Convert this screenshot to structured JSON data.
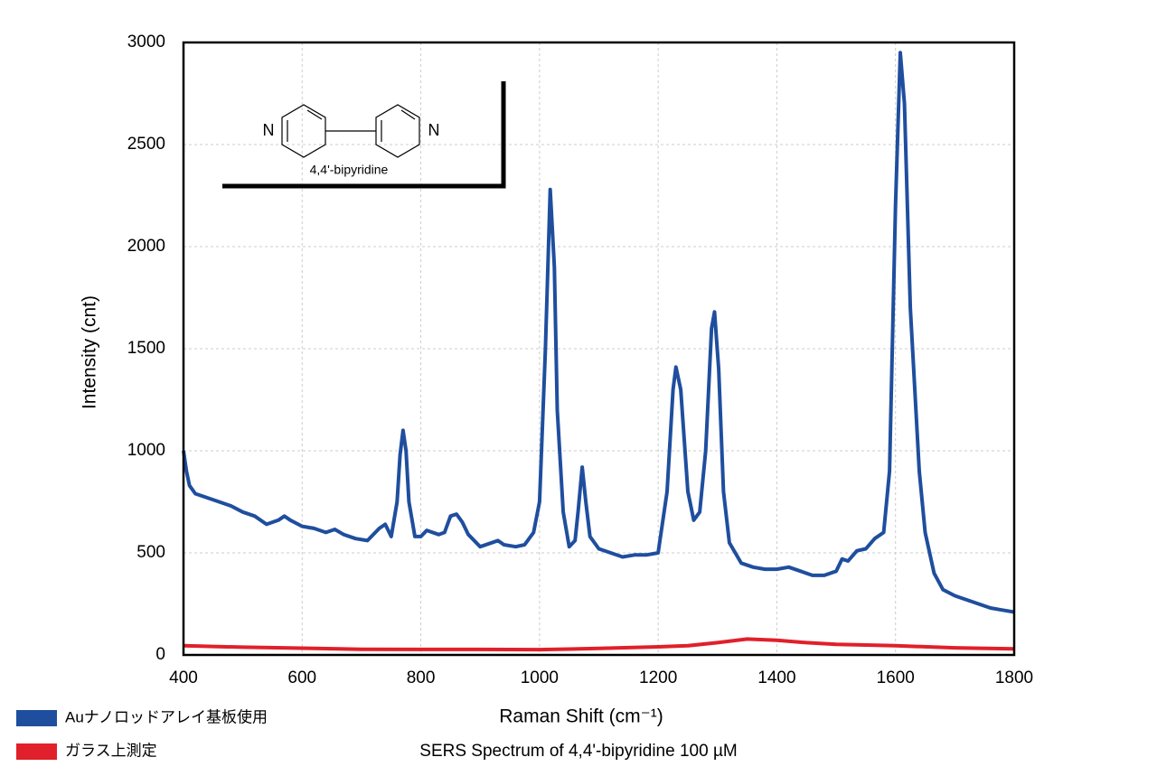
{
  "chart_data": {
    "type": "line",
    "title": "SERS Spectrum of 4,4'-bipyridine 100 µM",
    "x_label": "Raman Shift (cm⁻¹)",
    "y_label": "Intensity (cnt)",
    "xlim": [
      400,
      1800
    ],
    "xticks": [
      400,
      600,
      800,
      1000,
      1200,
      1400,
      1600,
      1800
    ],
    "ylim": [
      0,
      3000
    ],
    "yticks": [
      0,
      500,
      1000,
      1500,
      2000,
      2500,
      3000
    ],
    "grid": true,
    "legend": "bottom-left",
    "series": [
      {
        "name": "Auナノロッドアレイ基板使用",
        "color": "#1f4e9e",
        "x": [
          400,
          405,
          410,
          420,
          440,
          460,
          480,
          500,
          520,
          540,
          560,
          570,
          580,
          600,
          620,
          640,
          655,
          670,
          690,
          710,
          730,
          740,
          750,
          760,
          765,
          770,
          775,
          780,
          790,
          800,
          810,
          830,
          840,
          850,
          860,
          870,
          880,
          900,
          920,
          930,
          940,
          960,
          975,
          990,
          1000,
          1010,
          1018,
          1025,
          1030,
          1040,
          1050,
          1060,
          1065,
          1072,
          1078,
          1085,
          1100,
          1120,
          1140,
          1160,
          1180,
          1200,
          1215,
          1225,
          1230,
          1238,
          1250,
          1260,
          1270,
          1280,
          1290,
          1295,
          1302,
          1310,
          1320,
          1340,
          1360,
          1380,
          1400,
          1420,
          1440,
          1460,
          1480,
          1500,
          1510,
          1520,
          1535,
          1550,
          1565,
          1580,
          1590,
          1600,
          1608,
          1615,
          1625,
          1640,
          1650,
          1665,
          1680,
          1700,
          1720,
          1740,
          1760,
          1780,
          1800
        ],
        "values": [
          1000,
          900,
          830,
          790,
          770,
          750,
          730,
          700,
          680,
          640,
          660,
          680,
          660,
          630,
          620,
          600,
          615,
          590,
          570,
          560,
          620,
          640,
          580,
          750,
          980,
          1100,
          1000,
          750,
          580,
          580,
          610,
          590,
          600,
          680,
          690,
          650,
          590,
          530,
          550,
          560,
          540,
          530,
          540,
          600,
          750,
          1500,
          2280,
          1900,
          1200,
          700,
          530,
          560,
          700,
          920,
          750,
          580,
          520,
          500,
          480,
          490,
          490,
          500,
          800,
          1300,
          1410,
          1300,
          800,
          660,
          700,
          1000,
          1600,
          1680,
          1400,
          800,
          550,
          450,
          430,
          420,
          420,
          430,
          410,
          390,
          390,
          410,
          470,
          460,
          510,
          520,
          570,
          600,
          900,
          2200,
          2950,
          2700,
          1700,
          900,
          600,
          400,
          320,
          290,
          270,
          250,
          230,
          220,
          210
        ]
      },
      {
        "name": "ガラス上測定",
        "color": "#e0202a",
        "x": [
          400,
          500,
          600,
          700,
          800,
          900,
          1000,
          1100,
          1200,
          1250,
          1300,
          1350,
          1400,
          1450,
          1500,
          1600,
          1700,
          1800
        ],
        "values": [
          45,
          38,
          33,
          28,
          27,
          27,
          26,
          32,
          40,
          45,
          60,
          78,
          72,
          60,
          52,
          45,
          35,
          30
        ]
      }
    ]
  },
  "inset": {
    "atoms": [
      "N",
      "N"
    ],
    "caption": "4,4'-bipyridine"
  }
}
